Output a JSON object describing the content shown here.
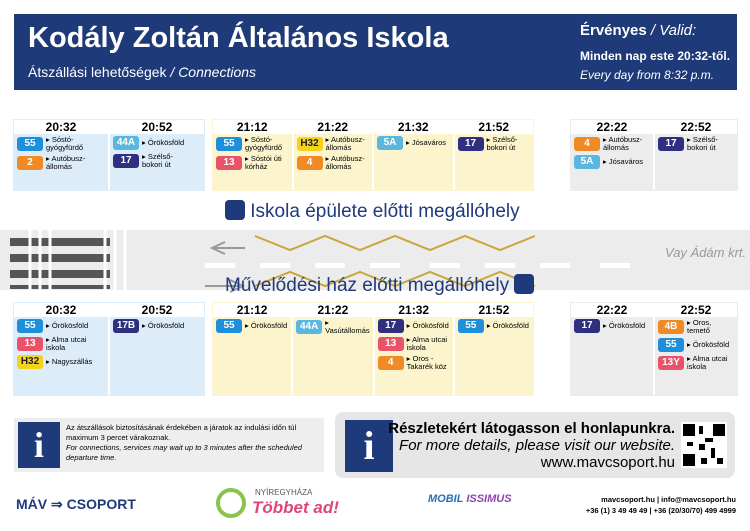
{
  "header": {
    "title": "Kodály Zoltán Általános Iskola",
    "subtitle_hu": "Átszállási lehetőségek",
    "subtitle_en": "/ Connections",
    "valid_hu": "Érvényes",
    "valid_en": "/ Valid:",
    "valid_line_hu": "Minden nap este 20:32-től.",
    "valid_line_en": "Every day from 8:32 p.m."
  },
  "top_groups": [
    {
      "bg": "#dcecf8",
      "times": [
        {
          "time": "20:32",
          "entries": [
            {
              "route": "55",
              "color": "#1e8fd8",
              "dest": "Sóstó-\ngyógyfürdő"
            },
            {
              "route": "2",
              "color": "#f08a24",
              "dest": "Autóbusz-\nállomás"
            }
          ]
        },
        {
          "time": "20:52",
          "entries": [
            {
              "route": "44A",
              "color": "#5ab8e0",
              "dest": "Örökösföld"
            },
            {
              "route": "17",
              "color": "#2e2f7e",
              "dest": "Szélső-\nbokori út"
            }
          ]
        }
      ]
    },
    {
      "bg": "#fbf4cc",
      "times": [
        {
          "time": "21:12",
          "entries": [
            {
              "route": "55",
              "color": "#1e8fd8",
              "dest": "Sóstó-\ngyógyfürdő"
            },
            {
              "route": "13",
              "color": "#e8536a",
              "dest": "Sóstói úti\nkórház"
            }
          ]
        },
        {
          "time": "21:22",
          "entries": [
            {
              "route": "H32",
              "color": "#f5d21e",
              "dest": "Autóbusz-\nállomás"
            },
            {
              "route": "4",
              "color": "#f08a24",
              "dest": "Autóbusz-\nállomás"
            }
          ]
        },
        {
          "time": "21:32",
          "entries": [
            {
              "route": "5A",
              "color": "#5ab8e0",
              "dest": "Jósaváros"
            }
          ]
        },
        {
          "time": "21:52",
          "entries": [
            {
              "route": "17",
              "color": "#2e2f7e",
              "dest": "Szélső-\nbokori út"
            }
          ]
        }
      ]
    },
    {
      "bg": "#ececec",
      "times": [
        {
          "time": "22:22",
          "entries": [
            {
              "route": "4",
              "color": "#f08a24",
              "dest": "Autóbusz-\nállomás"
            },
            {
              "route": "5A",
              "color": "#5ab8e0",
              "dest": "Jósaváros"
            }
          ]
        },
        {
          "time": "22:52",
          "entries": [
            {
              "route": "17",
              "color": "#2e2f7e",
              "dest": "Szélső-\nbokori út"
            }
          ]
        }
      ]
    }
  ],
  "stop_top": "Iskola épülete előtti megállóhely",
  "street": "Vay Ádám krt.",
  "stop_bottom": "Művelődési ház előtti megállóhely",
  "bottom_groups": [
    {
      "bg": "#dcecf8",
      "times": [
        {
          "time": "20:32",
          "entries": [
            {
              "route": "55",
              "color": "#1e8fd8",
              "dest": "Örökösföld"
            },
            {
              "route": "13",
              "color": "#e8536a",
              "dest": "Alma utcai\niskola"
            },
            {
              "route": "H32",
              "color": "#f5d21e",
              "dest": "Nagyszállás"
            }
          ]
        },
        {
          "time": "20:52",
          "entries": [
            {
              "route": "17B",
              "color": "#2e2f7e",
              "dest": "Örökösföld"
            }
          ]
        }
      ]
    },
    {
      "bg": "#fbf4cc",
      "times": [
        {
          "time": "21:12",
          "entries": [
            {
              "route": "55",
              "color": "#1e8fd8",
              "dest": "Örökösföld"
            }
          ]
        },
        {
          "time": "21:22",
          "entries": [
            {
              "route": "44A",
              "color": "#5ab8e0",
              "dest": "Vasútállomás"
            }
          ]
        },
        {
          "time": "21:32",
          "entries": [
            {
              "route": "17",
              "color": "#2e2f7e",
              "dest": "Örökösföld"
            },
            {
              "route": "13",
              "color": "#e8536a",
              "dest": "Alma utcai\niskola"
            },
            {
              "route": "4",
              "color": "#f08a24",
              "dest": "Oros -\nTakarék köz"
            }
          ]
        },
        {
          "time": "21:52",
          "entries": [
            {
              "route": "55",
              "color": "#1e8fd8",
              "dest": "Örökösföld"
            }
          ]
        }
      ]
    },
    {
      "bg": "#ececec",
      "times": [
        {
          "time": "22:22",
          "entries": [
            {
              "route": "17",
              "color": "#2e2f7e",
              "dest": "Örökösföld"
            }
          ]
        },
        {
          "time": "22:52",
          "entries": [
            {
              "route": "4B",
              "color": "#f08a24",
              "dest": "Oros, temető"
            },
            {
              "route": "55",
              "color": "#1e8fd8",
              "dest": "Örökösföld"
            },
            {
              "route": "13Y",
              "color": "#e8536a",
              "dest": "Alma utcai\niskola"
            }
          ]
        }
      ]
    }
  ],
  "info_left": {
    "hu": "Az átszállások biztosításának érdekében a járatok az indulási időn túl maximum 3 percet várakoznak.",
    "en": "For connections, services may wait up to 3 minutes after the scheduled departure time."
  },
  "info_right": {
    "hu": "Részletekért látogasson el honlapunkra.",
    "en": "For more details, please visit our website.",
    "url": "www.mavcsoport.hu"
  },
  "footer": {
    "mav": "MÁV",
    "csoport": "CSOPORT",
    "city": "NYÍREGYHÁZA",
    "slogan": "Többet ad!",
    "mobil": "MOBIL",
    "issimus": "ISSIMUS",
    "contact1": "mavcsoport.hu | info@mavcsoport.hu",
    "contact2": "+36 (1) 3 49 49 49 | +36 (20/30/70) 499 4999"
  }
}
